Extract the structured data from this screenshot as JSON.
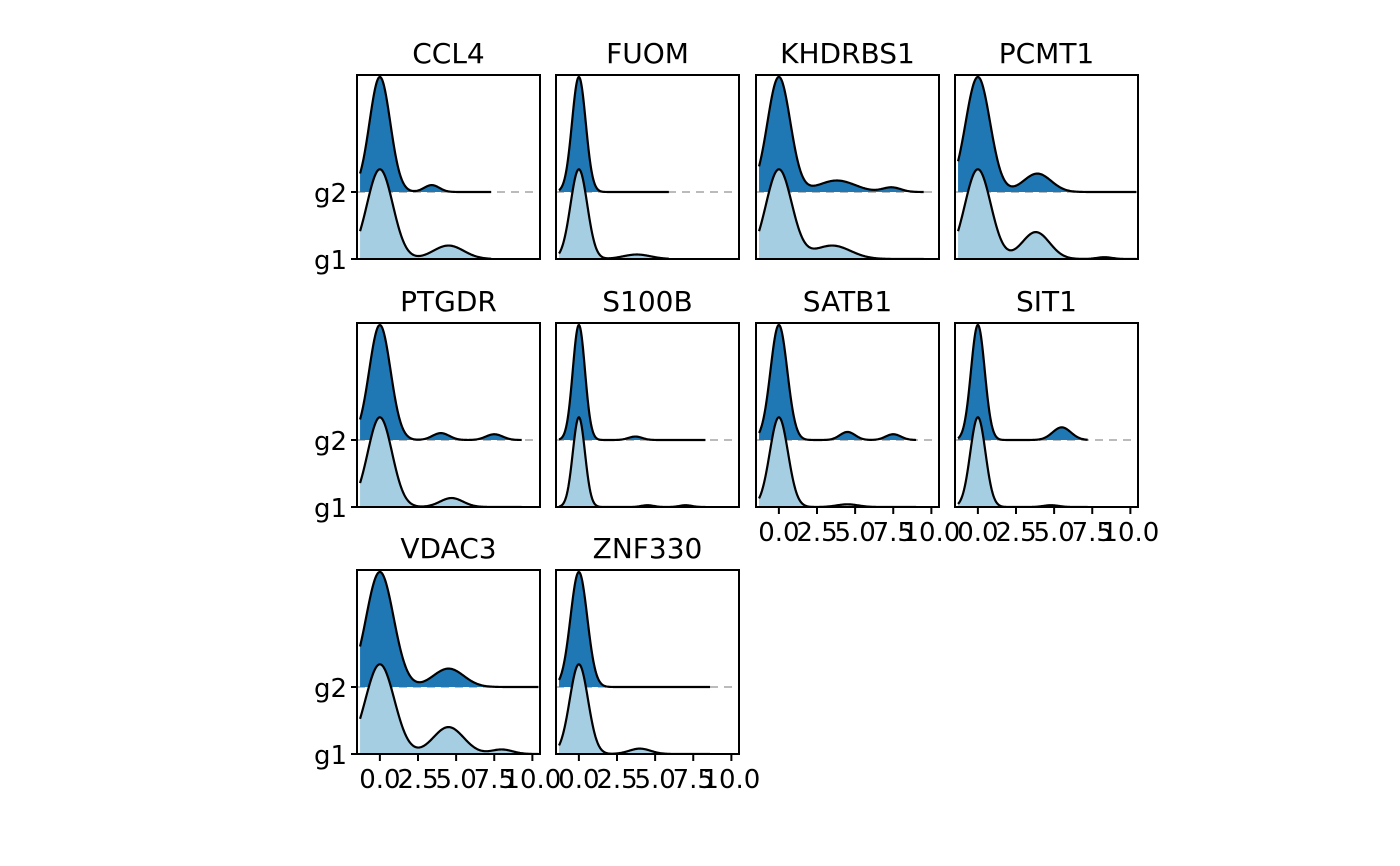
{
  "chart_data": {
    "type": "area",
    "subtype": "ridgeline",
    "groups": [
      "g1",
      "g2"
    ],
    "group_colors": {
      "g1": "#a6cee3",
      "g2": "#1f78b4"
    },
    "x_range": [
      -1.5,
      10.5
    ],
    "x_ticks": [
      "0.0",
      "2.5",
      "5.0",
      "7.5",
      "10.0"
    ],
    "x_tick_values": [
      0.0,
      2.5,
      5.0,
      7.5,
      10.0
    ],
    "grid": false,
    "panels": [
      {
        "title": "CCL4",
        "row": 0,
        "col": 0,
        "x_axis": false,
        "g1": {
          "peaks": [
            [
              0.0,
              1.0,
              0.85
            ],
            [
              4.5,
              0.15,
              1.0
            ]
          ],
          "max_x": 7.3
        },
        "g2": {
          "peaks": [
            [
              0.0,
              1.0,
              0.68
            ],
            [
              3.4,
              0.06,
              0.5
            ]
          ],
          "max_x": 7.3
        }
      },
      {
        "title": "FUOM",
        "row": 0,
        "col": 1,
        "x_axis": false,
        "g1": {
          "peaks": [
            [
              0.0,
              1.0,
              0.55
            ],
            [
              3.8,
              0.05,
              0.9
            ]
          ],
          "max_x": 5.9
        },
        "g2": {
          "peaks": [
            [
              0.0,
              1.0,
              0.45
            ]
          ],
          "max_x": 5.9
        }
      },
      {
        "title": "KHDRBS1",
        "row": 0,
        "col": 2,
        "x_axis": false,
        "g1": {
          "peaks": [
            [
              0.0,
              1.0,
              0.85
            ],
            [
              3.5,
              0.15,
              1.2
            ]
          ],
          "max_x": 9.5
        },
        "g2": {
          "peaks": [
            [
              0.0,
              1.0,
              0.75
            ],
            [
              3.8,
              0.1,
              1.2
            ],
            [
              7.4,
              0.04,
              0.6
            ]
          ],
          "max_x": 9.5
        }
      },
      {
        "title": "PCMT1",
        "row": 0,
        "col": 3,
        "x_axis": false,
        "g1": {
          "peaks": [
            [
              0.0,
              1.0,
              0.85
            ],
            [
              3.8,
              0.3,
              0.9
            ],
            [
              8.3,
              0.02,
              0.5
            ]
          ],
          "max_x": 10.4
        },
        "g2": {
          "peaks": [
            [
              0.0,
              1.0,
              0.8
            ],
            [
              3.9,
              0.16,
              0.9
            ]
          ],
          "max_x": 10.4
        }
      },
      {
        "title": "PTGDR",
        "row": 1,
        "col": 0,
        "x_axis": false,
        "g1": {
          "peaks": [
            [
              0.0,
              1.0,
              0.8
            ],
            [
              4.7,
              0.1,
              0.75
            ]
          ],
          "max_x": 9.3
        },
        "g2": {
          "peaks": [
            [
              0.0,
              1.0,
              0.7
            ],
            [
              4.0,
              0.06,
              0.55
            ],
            [
              7.5,
              0.05,
              0.55
            ]
          ],
          "max_x": 9.3
        }
      },
      {
        "title": "S100B",
        "row": 1,
        "col": 1,
        "x_axis": false,
        "g1": {
          "peaks": [
            [
              0.0,
              1.0,
              0.4
            ],
            [
              4.5,
              0.02,
              0.4
            ],
            [
              7.0,
              0.02,
              0.4
            ]
          ],
          "max_x": 8.3
        },
        "g2": {
          "peaks": [
            [
              0.0,
              1.0,
              0.4
            ],
            [
              3.7,
              0.03,
              0.45
            ]
          ],
          "max_x": 8.3
        }
      },
      {
        "title": "SATB1",
        "row": 1,
        "col": 2,
        "x_axis": true,
        "g1": {
          "peaks": [
            [
              0.0,
              1.0,
              0.6
            ],
            [
              4.5,
              0.03,
              0.7
            ]
          ],
          "max_x": 9.0
        },
        "g2": {
          "peaks": [
            [
              0.0,
              1.0,
              0.55
            ],
            [
              4.5,
              0.07,
              0.5
            ],
            [
              7.5,
              0.05,
              0.5
            ]
          ],
          "max_x": 9.0
        }
      },
      {
        "title": "SIT1",
        "row": 1,
        "col": 3,
        "x_axis": true,
        "g1": {
          "peaks": [
            [
              0.0,
              1.0,
              0.5
            ],
            [
              4.8,
              0.02,
              0.5
            ]
          ],
          "max_x": 7.2
        },
        "g2": {
          "peaks": [
            [
              0.0,
              1.0,
              0.45
            ],
            [
              5.5,
              0.11,
              0.6
            ]
          ],
          "max_x": 7.2
        }
      },
      {
        "title": "VDAC3",
        "row": 2,
        "col": 0,
        "x_axis": true,
        "g1": {
          "peaks": [
            [
              0.0,
              1.0,
              0.95
            ],
            [
              4.5,
              0.3,
              1.0
            ],
            [
              8.0,
              0.05,
              0.7
            ]
          ],
          "max_x": 10.4
        },
        "g2": {
          "peaks": [
            [
              0.0,
              1.0,
              0.9
            ],
            [
              4.5,
              0.16,
              1.0
            ]
          ],
          "max_x": 10.4
        }
      },
      {
        "title": "ZNF330",
        "row": 2,
        "col": 1,
        "x_axis": true,
        "g1": {
          "peaks": [
            [
              0.0,
              1.0,
              0.6
            ],
            [
              4.0,
              0.06,
              0.7
            ]
          ],
          "max_x": 8.6
        },
        "g2": {
          "peaks": [
            [
              0.0,
              1.0,
              0.55
            ]
          ],
          "max_x": 8.6
        }
      }
    ]
  }
}
